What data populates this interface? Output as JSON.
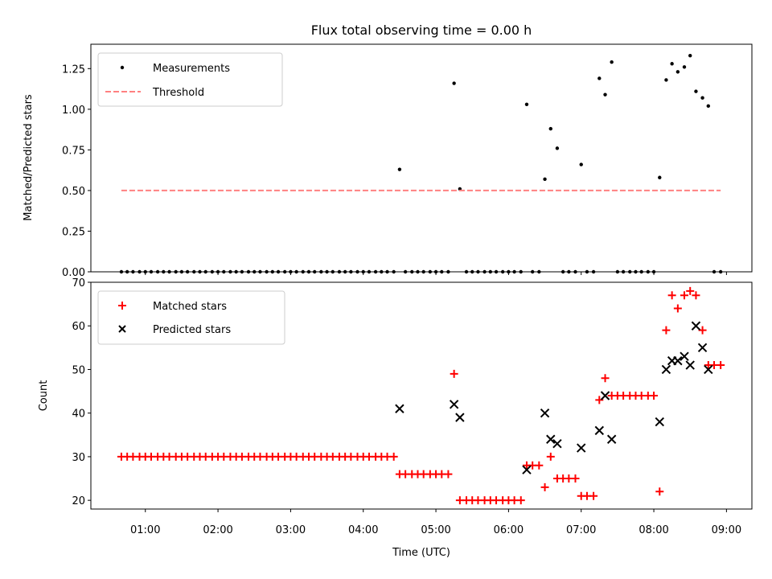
{
  "figure": {
    "title": "Flux total observing time = 0.00 h",
    "xlabel": "Time (UTC)"
  },
  "x_tick_labels": [
    "01:00",
    "02:00",
    "03:00",
    "04:00",
    "05:00",
    "06:00",
    "07:00",
    "08:00",
    "09:00"
  ],
  "chart_data": [
    {
      "type": "scatter",
      "title": "Flux total observing time = 0.00 h",
      "ylabel": "Matched/Predicted stars",
      "xlabel": "",
      "x_units": "hours UTC",
      "xlim": [
        0.25,
        9.35
      ],
      "ylim": [
        0.0,
        1.4
      ],
      "yticks": [
        "0.00",
        "0.25",
        "0.50",
        "0.75",
        "1.00",
        "1.25"
      ],
      "legend_position": "top-left",
      "grid": false,
      "series": [
        {
          "name": "Measurements",
          "type": "scatter",
          "color": "#000000",
          "x": [
            0.67,
            0.75,
            0.83,
            0.92,
            1.0,
            1.08,
            1.17,
            1.25,
            1.33,
            1.42,
            1.5,
            1.58,
            1.67,
            1.75,
            1.83,
            1.92,
            2.0,
            2.08,
            2.17,
            2.25,
            2.33,
            2.42,
            2.5,
            2.58,
            2.67,
            2.75,
            2.83,
            2.92,
            3.0,
            3.08,
            3.17,
            3.25,
            3.33,
            3.42,
            3.5,
            3.58,
            3.67,
            3.75,
            3.83,
            3.92,
            4.0,
            4.08,
            4.17,
            4.25,
            4.33,
            4.42,
            4.5,
            4.58,
            4.67,
            4.75,
            4.83,
            4.92,
            5.0,
            5.08,
            5.17,
            5.25,
            5.33,
            5.42,
            5.5,
            5.58,
            5.67,
            5.75,
            5.83,
            5.92,
            6.0,
            6.08,
            6.17,
            6.25,
            6.33,
            6.42,
            6.5,
            6.58,
            6.67,
            6.75,
            6.83,
            6.92,
            7.0,
            7.08,
            7.17,
            7.25,
            7.33,
            7.42,
            7.5,
            7.58,
            7.67,
            7.75,
            7.83,
            7.92,
            8.0,
            8.08,
            8.17,
            8.25,
            8.33,
            8.42,
            8.5,
            8.58,
            8.67,
            8.75,
            8.83,
            8.92
          ],
          "y": [
            0,
            0,
            0,
            0,
            0,
            0,
            0,
            0,
            0,
            0,
            0,
            0,
            0,
            0,
            0,
            0,
            0,
            0,
            0,
            0,
            0,
            0,
            0,
            0,
            0,
            0,
            0,
            0,
            0,
            0,
            0,
            0,
            0,
            0,
            0,
            0,
            0,
            0,
            0,
            0,
            0,
            0,
            0,
            0,
            0,
            0,
            0.63,
            0,
            0,
            0,
            0,
            0,
            0,
            0,
            0,
            1.16,
            0.51,
            0,
            0,
            0,
            0,
            0,
            0,
            0,
            0,
            0,
            0,
            1.03,
            0,
            0,
            0.57,
            0.88,
            0.76,
            0,
            0,
            0,
            0.66,
            0,
            0,
            1.19,
            1.09,
            1.29,
            0,
            0,
            0,
            0,
            0,
            0,
            0,
            0.58,
            1.18,
            1.28,
            1.23,
            1.26,
            1.33,
            1.11,
            1.07,
            1.02,
            0,
            0
          ]
        },
        {
          "name": "Threshold",
          "type": "line",
          "style": "dashed",
          "color": "#ff8080",
          "x": [
            0.67,
            8.92
          ],
          "y": [
            0.5,
            0.5
          ]
        }
      ]
    },
    {
      "type": "scatter",
      "ylabel": "Count",
      "xlabel": "Time (UTC)",
      "x_units": "hours UTC",
      "xlim": [
        0.25,
        9.35
      ],
      "ylim": [
        18,
        70
      ],
      "yticks": [
        "20",
        "30",
        "40",
        "50",
        "60",
        "70"
      ],
      "legend_position": "top-left",
      "grid": false,
      "series": [
        {
          "name": "Matched stars",
          "marker": "plus",
          "color": "#ff0000",
          "x": [
            0.67,
            0.75,
            0.83,
            0.92,
            1.0,
            1.08,
            1.17,
            1.25,
            1.33,
            1.42,
            1.5,
            1.58,
            1.67,
            1.75,
            1.83,
            1.92,
            2.0,
            2.08,
            2.17,
            2.25,
            2.33,
            2.42,
            2.5,
            2.58,
            2.67,
            2.75,
            2.83,
            2.92,
            3.0,
            3.08,
            3.17,
            3.25,
            3.33,
            3.42,
            3.5,
            3.58,
            3.67,
            3.75,
            3.83,
            3.92,
            4.0,
            4.08,
            4.17,
            4.25,
            4.33,
            4.42,
            4.5,
            4.58,
            4.67,
            4.75,
            4.83,
            4.92,
            5.0,
            5.08,
            5.17,
            5.25,
            5.33,
            5.42,
            5.5,
            5.58,
            5.67,
            5.75,
            5.83,
            5.92,
            6.0,
            6.08,
            6.17,
            6.25,
            6.33,
            6.42,
            6.5,
            6.58,
            6.67,
            6.75,
            6.83,
            6.92,
            7.0,
            7.08,
            7.17,
            7.25,
            7.33,
            7.42,
            7.5,
            7.58,
            7.67,
            7.75,
            7.83,
            7.92,
            8.0,
            8.08,
            8.17,
            8.25,
            8.33,
            8.42,
            8.5,
            8.58,
            8.67,
            8.75,
            8.83,
            8.92
          ],
          "y": [
            30,
            30,
            30,
            30,
            30,
            30,
            30,
            30,
            30,
            30,
            30,
            30,
            30,
            30,
            30,
            30,
            30,
            30,
            30,
            30,
            30,
            30,
            30,
            30,
            30,
            30,
            30,
            30,
            30,
            30,
            30,
            30,
            30,
            30,
            30,
            30,
            30,
            30,
            30,
            30,
            30,
            30,
            30,
            30,
            30,
            30,
            26,
            26,
            26,
            26,
            26,
            26,
            26,
            26,
            26,
            49,
            20,
            20,
            20,
            20,
            20,
            20,
            20,
            20,
            20,
            20,
            20,
            28,
            28,
            28,
            23,
            30,
            25,
            25,
            25,
            25,
            21,
            21,
            21,
            43,
            48,
            44,
            44,
            44,
            44,
            44,
            44,
            44,
            44,
            22,
            59,
            67,
            64,
            67,
            68,
            67,
            59,
            51,
            51,
            51
          ]
        },
        {
          "name": "Predicted stars",
          "marker": "x",
          "color": "#000000",
          "x": [
            4.5,
            5.25,
            5.33,
            6.25,
            6.5,
            6.58,
            6.67,
            7.0,
            7.25,
            7.33,
            7.42,
            8.08,
            8.17,
            8.25,
            8.33,
            8.42,
            8.5,
            8.58,
            8.67,
            8.75
          ],
          "y": [
            41,
            42,
            39,
            27,
            40,
            34,
            33,
            32,
            36,
            44,
            34,
            38,
            50,
            52,
            52,
            53,
            51,
            60,
            55,
            50
          ]
        }
      ]
    }
  ]
}
